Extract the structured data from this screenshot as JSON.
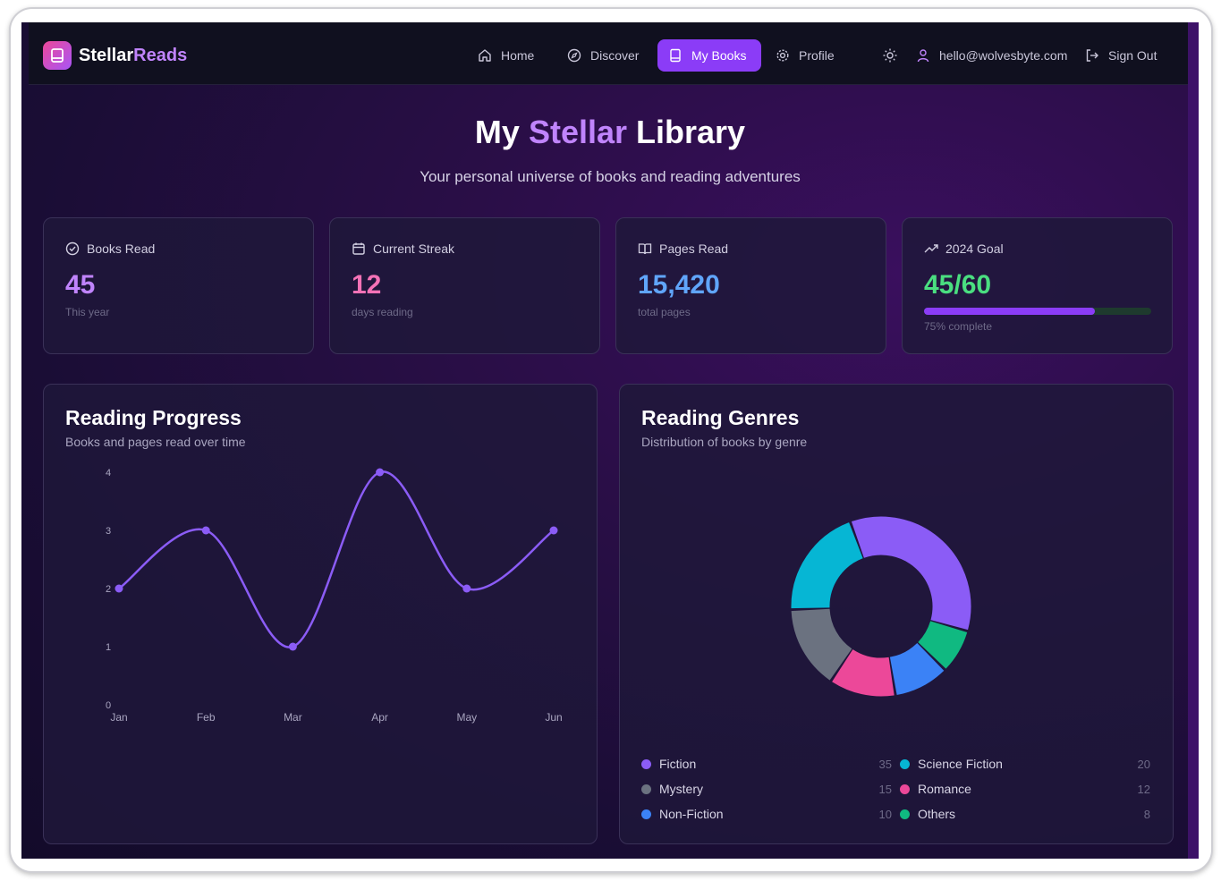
{
  "header": {
    "logo_main": "Stellar",
    "logo_accent": "Reads",
    "nav": [
      {
        "label": "Home",
        "icon": "home-icon"
      },
      {
        "label": "Discover",
        "icon": "compass-icon"
      },
      {
        "label": "My Books",
        "icon": "book-icon",
        "active": true
      },
      {
        "label": "Profile",
        "icon": "gear-icon"
      }
    ],
    "theme_icon": "sun-icon",
    "user_email": "hello@wolvesbyte.com",
    "sign_out": "Sign Out"
  },
  "hero": {
    "title_pre": "My",
    "title_accent": "Stellar",
    "title_post": "Library",
    "subtitle": "Your personal universe of books and reading adventures"
  },
  "stats": [
    {
      "label": "Books Read",
      "icon": "check-circle-icon",
      "value": "45",
      "sub": "This year",
      "color": "#c084fc"
    },
    {
      "label": "Current Streak",
      "icon": "calendar-icon",
      "value": "12",
      "sub": "days reading",
      "color": "#f472b6"
    },
    {
      "label": "Pages Read",
      "icon": "open-book-icon",
      "value": "15,420",
      "sub": "total pages",
      "color": "#60a5fa"
    },
    {
      "label": "2024 Goal",
      "icon": "trending-up-icon",
      "value": "45/60",
      "sub": "75% complete",
      "color": "#4ade80",
      "progress": 0.75
    }
  ],
  "progress_panel": {
    "title": "Reading Progress",
    "subtitle": "Books and pages read over time"
  },
  "genres_panel": {
    "title": "Reading Genres",
    "subtitle": "Distribution of books by genre"
  },
  "chart_data": [
    {
      "type": "line",
      "title": "Reading Progress",
      "categories": [
        "Jan",
        "Feb",
        "Mar",
        "Apr",
        "May",
        "Jun"
      ],
      "series": [
        {
          "values": [
            2,
            3,
            1,
            4,
            2,
            3
          ],
          "color": "#8b5cf6"
        }
      ],
      "ylim": [
        0,
        4
      ],
      "yticks": [
        0,
        1,
        2,
        3,
        4
      ],
      "grid": false
    },
    {
      "type": "pie",
      "title": "Reading Genres",
      "donut": true,
      "slices": [
        {
          "label": "Fiction",
          "value": 35,
          "color": "#8b5cf6"
        },
        {
          "label": "Science Fiction",
          "value": 20,
          "color": "#06b6d4"
        },
        {
          "label": "Mystery",
          "value": 15,
          "color": "#6b7280"
        },
        {
          "label": "Romance",
          "value": 12,
          "color": "#ec4899"
        },
        {
          "label": "Non-Fiction",
          "value": 10,
          "color": "#3b82f6"
        },
        {
          "label": "Others",
          "value": 8,
          "color": "#10b981"
        }
      ]
    }
  ]
}
